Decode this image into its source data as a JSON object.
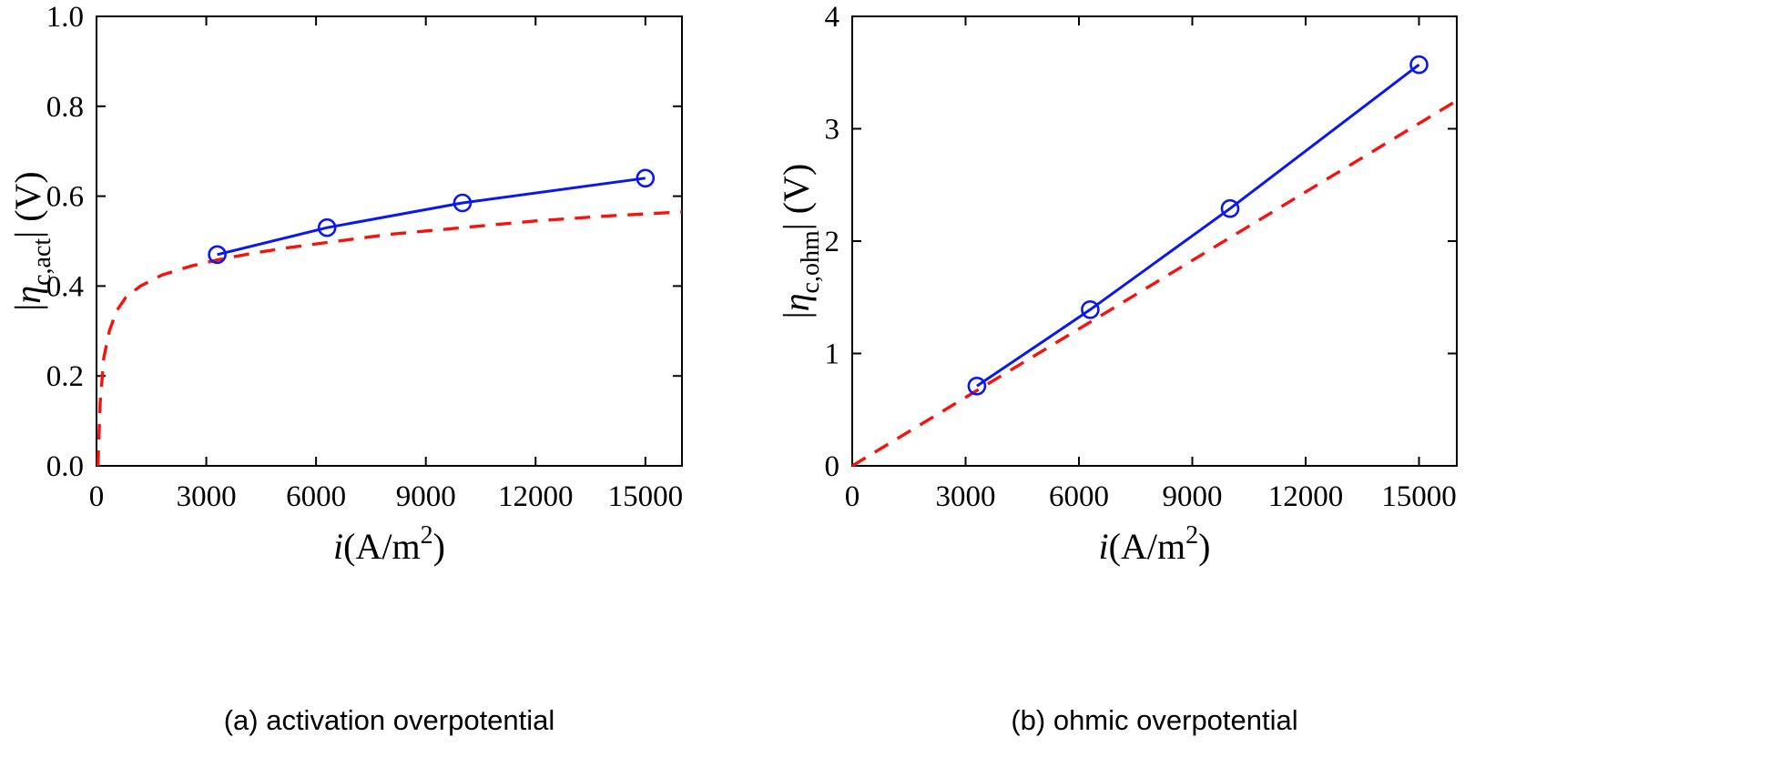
{
  "figure": {
    "background": "#ffffff",
    "captions": {
      "a": "(a) activation overpotential",
      "b": "(b) ohmic overpotential"
    }
  },
  "chart_data": [
    {
      "id": "activation-overpotential",
      "type": "line",
      "caption": "(a) activation overpotential",
      "xlabel_text": "i(A/m^2)",
      "ylabel_text": "|η_c,act| (V)",
      "xlabel_parts": [
        {
          "text": "i",
          "italic": true
        },
        {
          "text": "(A/m"
        },
        {
          "text": "2",
          "pos": "sup"
        },
        {
          "text": ")"
        }
      ],
      "ylabel_parts": [
        {
          "text": "|"
        },
        {
          "text": "η",
          "italic": true
        },
        {
          "text": "c,act",
          "pos": "sub"
        },
        {
          "text": "| (V)"
        }
      ],
      "xlim": [
        0,
        16000
      ],
      "ylim": [
        0,
        1
      ],
      "xticks": [
        0,
        3000,
        6000,
        9000,
        12000,
        15000
      ],
      "xtick_labels": [
        "0",
        "3000",
        "6000",
        "9000",
        "12000",
        "15000"
      ],
      "yticks": [
        0,
        0.2,
        0.4,
        0.6,
        0.8,
        1
      ],
      "ytick_labels": [
        "0.0",
        "0.2",
        "0.4",
        "0.6",
        "0.8",
        "1.0"
      ],
      "grid": false,
      "legend": "none",
      "series": [
        {
          "name": "red-dashed-model",
          "color": "#f6120d",
          "style": "dashed",
          "marker": "none",
          "line_width": 3.4,
          "x": [
            40,
            100,
            200,
            350,
            550,
            800,
            1200,
            1800,
            2600,
            3300,
            4200,
            5200,
            6300,
            8000,
            10000,
            12000,
            14000,
            16000
          ],
          "y": [
            0.0,
            0.14,
            0.24,
            0.3,
            0.345,
            0.375,
            0.4,
            0.425,
            0.445,
            0.458,
            0.472,
            0.485,
            0.497,
            0.515,
            0.53,
            0.545,
            0.556,
            0.565
          ]
        },
        {
          "name": "blue-solid-circles",
          "color": "#0a18f0",
          "style": "solid",
          "marker": "circle",
          "line_width": 3,
          "x": [
            3300,
            6300,
            10000,
            15000
          ],
          "y": [
            0.47,
            0.53,
            0.585,
            0.64
          ]
        }
      ]
    },
    {
      "id": "ohmic-overpotential",
      "type": "line",
      "caption": "(b) ohmic overpotential",
      "xlabel_text": "i(A/m^2)",
      "ylabel_text": "|η_c,ohm| (V)",
      "xlabel_parts": [
        {
          "text": "i",
          "italic": true
        },
        {
          "text": "(A/m"
        },
        {
          "text": "2",
          "pos": "sup"
        },
        {
          "text": ")"
        }
      ],
      "ylabel_parts": [
        {
          "text": "|"
        },
        {
          "text": "η",
          "italic": true
        },
        {
          "text": "c,ohm",
          "pos": "sub"
        },
        {
          "text": "| (V)"
        }
      ],
      "xlim": [
        0,
        16000
      ],
      "ylim": [
        0,
        4
      ],
      "xticks": [
        0,
        3000,
        6000,
        9000,
        12000,
        15000
      ],
      "xtick_labels": [
        "0",
        "3000",
        "6000",
        "9000",
        "12000",
        "15000"
      ],
      "yticks": [
        0,
        1,
        2,
        3,
        4
      ],
      "ytick_labels": [
        "0",
        "1",
        "2",
        "3",
        "4"
      ],
      "grid": false,
      "legend": "none",
      "series": [
        {
          "name": "red-dashed-model",
          "color": "#f6120d",
          "style": "dashed",
          "marker": "none",
          "line_width": 3.4,
          "x": [
            0,
            16000
          ],
          "y": [
            0,
            3.25
          ]
        },
        {
          "name": "blue-solid-circles",
          "color": "#0a18f0",
          "style": "solid",
          "marker": "circle",
          "line_width": 3,
          "x": [
            3300,
            6300,
            10000,
            15000
          ],
          "y": [
            0.71,
            1.39,
            2.29,
            3.57
          ]
        }
      ]
    }
  ]
}
